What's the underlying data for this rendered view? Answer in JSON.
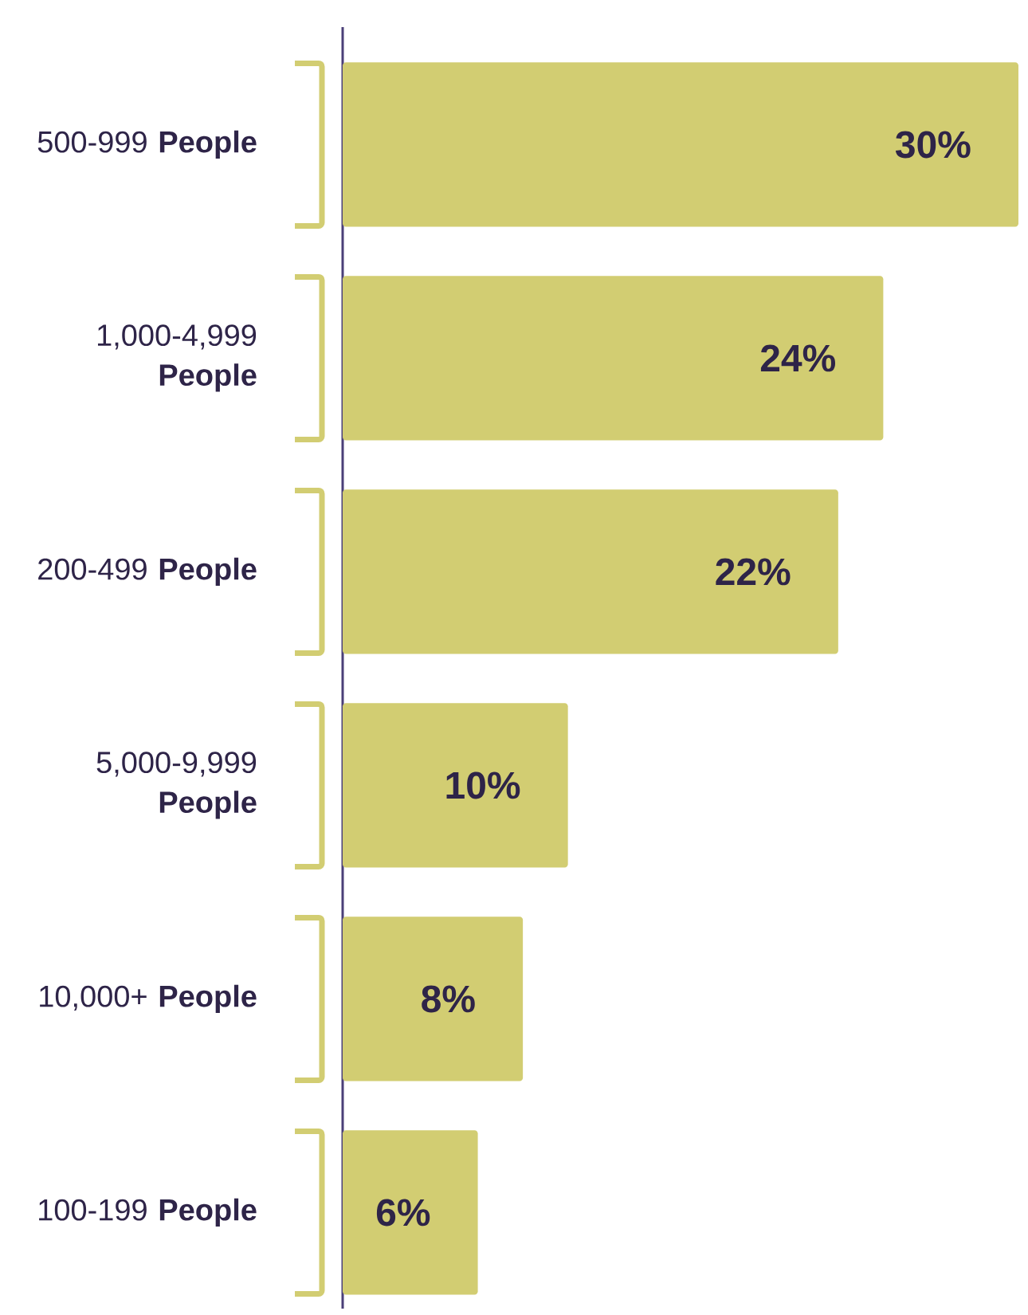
{
  "chart_data": {
    "type": "bar",
    "orientation": "horizontal",
    "categories": [
      "500-999 **People**",
      "1,000-4,999 **People**",
      "200-499 **People**",
      "5,000-9,999 **People**",
      "10,000+ **People**",
      "100-199 **People**"
    ],
    "values": [
      30,
      24,
      22,
      10,
      8,
      6
    ],
    "value_labels": [
      "30%",
      "24%",
      "22%",
      "10%",
      "8%",
      "6%"
    ],
    "color": "#d2cd72"
  }
}
